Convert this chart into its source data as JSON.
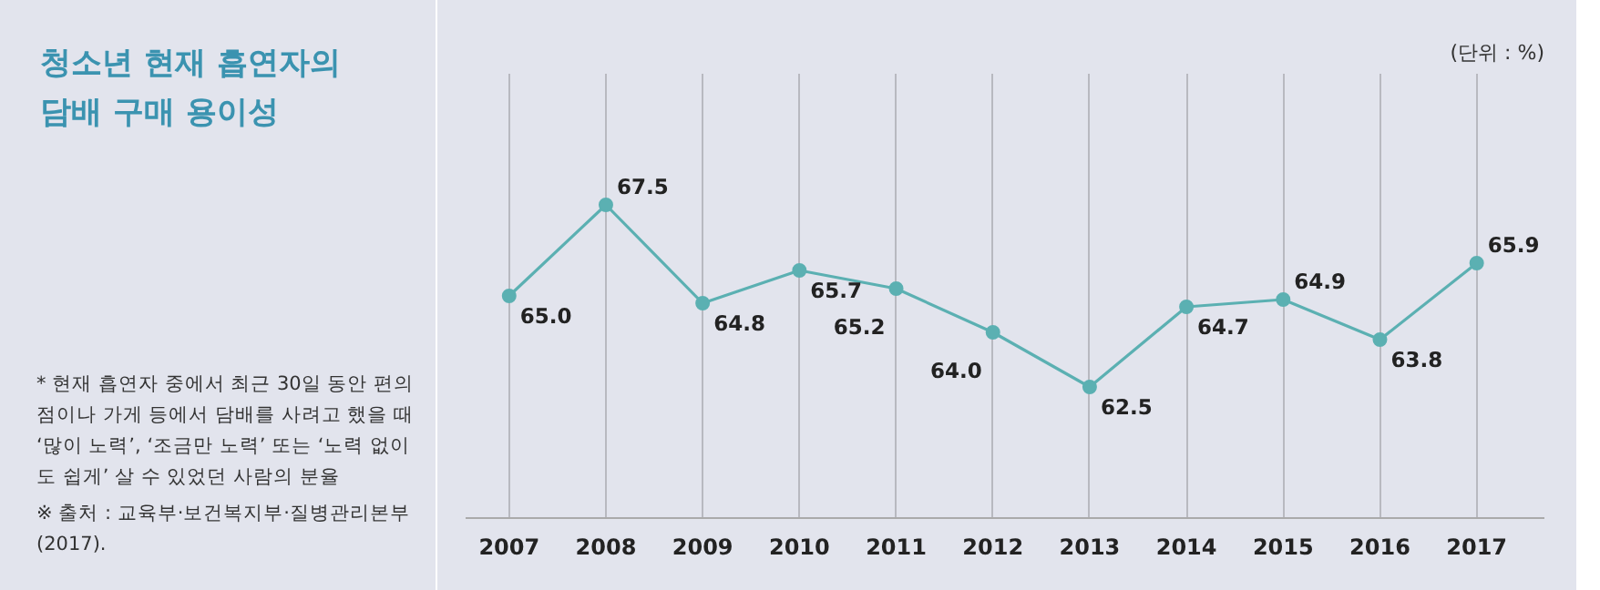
{
  "chart_data": {
    "type": "line",
    "title": "청소년 현재 흡연자의 담배 구매 용이성",
    "categories": [
      "2007",
      "2008",
      "2009",
      "2010",
      "2011",
      "2012",
      "2013",
      "2014",
      "2015",
      "2016",
      "2017"
    ],
    "series": [
      {
        "color": "#5bb0b2",
        "values": [
          65.0,
          67.5,
          64.8,
          65.7,
          65.2,
          64.0,
          62.5,
          64.7,
          64.9,
          63.8,
          65.9
        ],
        "value_labels": [
          "65.0",
          "67.5",
          "64.8",
          "65.7",
          "65.2",
          "64.0",
          "62.5",
          "64.7",
          "64.9",
          "63.8",
          "65.9"
        ]
      }
    ],
    "tick_labels": "x",
    "grid": "x",
    "marker": "circle",
    "annotations": [
      "(단위 : %)",
      "* 현재 흡연자 중에서 최근 30일 동안 편의점이나 가게 등에서 담배를 사려고 했을 때 ‘많이 노력’, ‘조금만 노력’ 또는 ‘노력 없이도 쉽게’ 살 수 있었던 사람의 분율",
      "※ 출처 : 교육부·보건복지부·질병관리본부(2017)."
    ]
  }
}
